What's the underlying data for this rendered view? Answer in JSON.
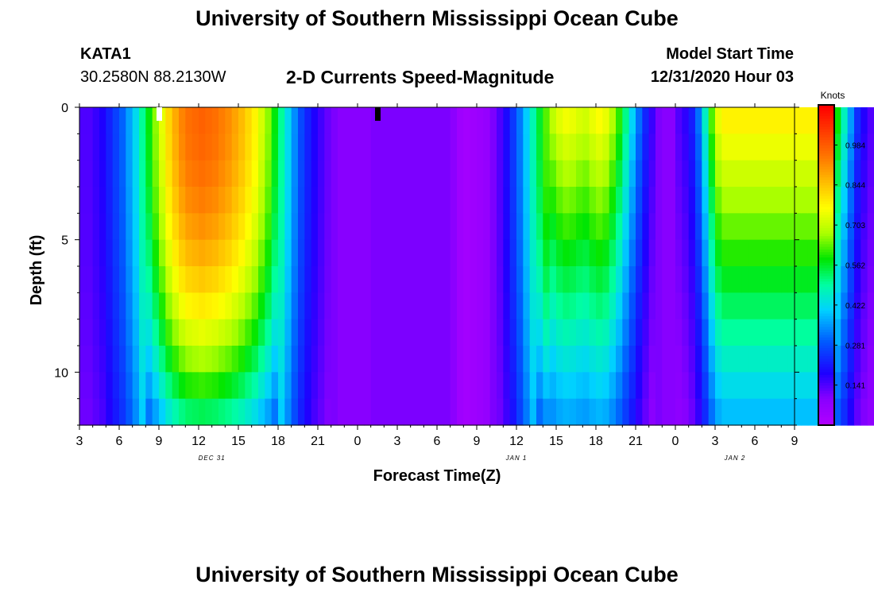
{
  "header": {
    "title": "University of Southern Mississippi Ocean Cube",
    "station": "KATA1",
    "coords": "30.2580N 88.2130W",
    "subtitle": "2-D Currents Speed-Magnitude",
    "model_start_label": "Model Start Time",
    "model_start_value": "12/31/2020 Hour 03"
  },
  "footer": {
    "title": "University of Southern Mississippi Ocean Cube"
  },
  "chart_data": {
    "type": "heatmap",
    "title": "2-D Currents Speed-Magnitude",
    "xlabel": "Forecast Time(Z)",
    "ylabel": "Depth (ft)",
    "x_tick_labels": [
      "3",
      "6",
      "9",
      "12",
      "15",
      "18",
      "21",
      "0",
      "3",
      "6",
      "9",
      "12",
      "15",
      "18",
      "21",
      "0",
      "3",
      "6",
      "9"
    ],
    "x_range_hours": [
      0,
      54
    ],
    "date_labels": [
      {
        "text": "DEC 31",
        "hour": 10
      },
      {
        "text": "JAN 1",
        "hour": 33
      },
      {
        "text": "JAN 2",
        "hour": 49.5
      }
    ],
    "y_tick_labels": [
      "0",
      "5",
      "10"
    ],
    "ylim": [
      0,
      12
    ],
    "colorbar": {
      "unit": "Knots",
      "tick_labels": [
        "0.984",
        "0.844",
        "0.703",
        "0.562",
        "0.422",
        "0.281",
        "0.141"
      ],
      "min": 0,
      "max": 1.125
    },
    "depth_levels_ft": [
      0.5,
      1.5,
      2.5,
      3.5,
      4.5,
      5.5,
      6.5,
      7.5,
      8.5,
      9.5,
      10.5,
      11.5
    ],
    "columns_per_hour": 2,
    "speed_knots": [
      [
        0.14,
        0.14,
        0.16,
        0.18,
        0.22,
        0.26,
        0.3,
        0.36,
        0.42,
        0.5,
        0.58,
        0.66,
        0.74,
        0.82,
        0.88,
        0.93,
        0.96,
        0.97,
        0.98,
        0.97,
        0.96,
        0.94,
        0.92,
        0.89,
        0.86,
        0.82,
        0.78,
        0.72,
        0.66,
        0.58,
        0.5,
        0.42,
        0.34,
        0.27,
        0.22,
        0.18,
        0.15,
        0.12,
        0.1,
        0.09,
        0.09,
        0.09,
        0.09,
        0.09,
        0.1,
        0.1,
        0.1,
        0.1,
        0.1,
        0.1,
        0.1,
        0.1,
        0.1,
        0.1,
        0.1,
        0.1,
        0.08,
        0.04,
        0.03,
        0.04,
        0.05,
        0.06,
        0.1,
        0.14,
        0.19,
        0.25,
        0.32,
        0.4,
        0.48,
        0.56,
        0.63,
        0.69,
        0.73,
        0.75,
        0.74,
        0.72,
        0.71,
        0.74,
        0.76,
        0.74,
        0.68,
        0.6,
        0.5,
        0.4,
        0.3,
        0.21,
        0.14,
        0.1,
        0.09,
        0.09,
        0.12,
        0.15,
        0.2,
        0.3,
        0.45,
        0.62,
        0.74,
        0.78,
        0.78,
        0.78,
        0.78,
        0.78,
        0.78,
        0.78,
        0.78,
        0.78,
        0.78,
        0.78,
        0.78,
        0.78,
        0.78,
        0.78,
        0.74,
        0.68,
        0.58,
        0.46,
        0.34,
        0.22,
        0.16,
        0.12
      ],
      [
        0.14,
        0.14,
        0.16,
        0.18,
        0.22,
        0.26,
        0.3,
        0.36,
        0.42,
        0.5,
        0.58,
        0.66,
        0.74,
        0.82,
        0.88,
        0.93,
        0.96,
        0.97,
        0.98,
        0.97,
        0.96,
        0.94,
        0.92,
        0.89,
        0.86,
        0.82,
        0.78,
        0.72,
        0.66,
        0.58,
        0.5,
        0.42,
        0.34,
        0.27,
        0.22,
        0.18,
        0.15,
        0.12,
        0.1,
        0.09,
        0.09,
        0.09,
        0.09,
        0.09,
        0.1,
        0.1,
        0.1,
        0.1,
        0.1,
        0.1,
        0.1,
        0.1,
        0.1,
        0.1,
        0.1,
        0.1,
        0.08,
        0.04,
        0.03,
        0.04,
        0.05,
        0.06,
        0.1,
        0.14,
        0.19,
        0.25,
        0.32,
        0.4,
        0.48,
        0.56,
        0.63,
        0.69,
        0.73,
        0.75,
        0.74,
        0.72,
        0.71,
        0.74,
        0.76,
        0.74,
        0.68,
        0.6,
        0.5,
        0.4,
        0.3,
        0.21,
        0.14,
        0.1,
        0.09,
        0.09,
        0.12,
        0.15,
        0.2,
        0.3,
        0.45,
        0.62,
        0.74,
        0.78,
        0.78,
        0.78,
        0.78,
        0.78,
        0.78,
        0.78,
        0.78,
        0.78,
        0.78,
        0.78,
        0.78,
        0.78,
        0.78,
        0.78,
        0.74,
        0.68,
        0.58,
        0.46,
        0.34,
        0.22,
        0.16,
        0.12
      ]
    ]
  }
}
